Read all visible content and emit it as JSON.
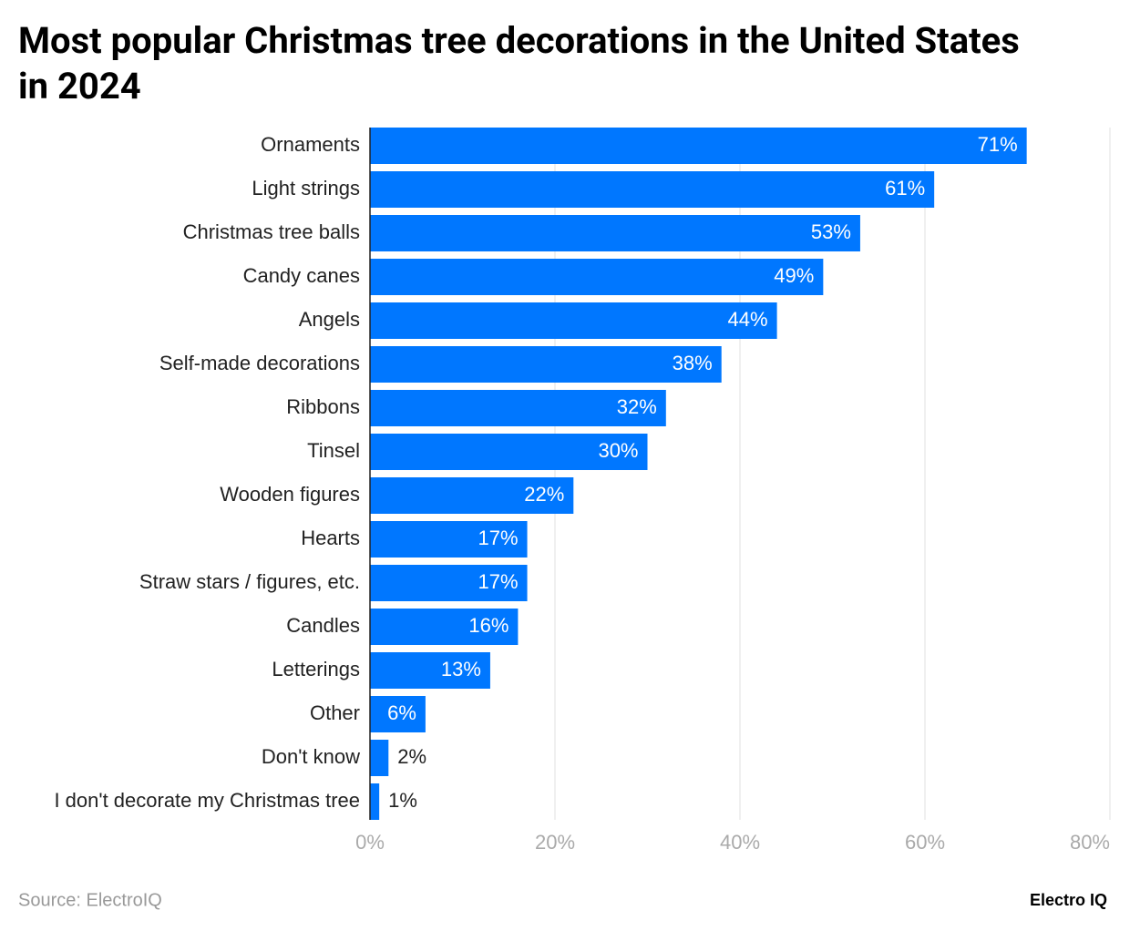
{
  "chart_data": {
    "type": "hbar",
    "title": "Most popular Christmas tree decorations in the United States in 2024",
    "categories": [
      "Ornaments",
      "Light strings",
      "Christmas tree balls",
      "Candy canes",
      "Angels",
      "Self-made decorations",
      "Ribbons",
      "Tinsel",
      "Wooden figures",
      "Hearts",
      "Straw stars / figures, etc.",
      "Candles",
      "Letterings",
      "Other",
      "Don't know",
      "I don't decorate my Christmas tree"
    ],
    "values": [
      71,
      61,
      53,
      49,
      44,
      38,
      32,
      30,
      22,
      17,
      17,
      16,
      13,
      6,
      2,
      1
    ],
    "value_labels": [
      "71%",
      "61%",
      "53%",
      "49%",
      "44%",
      "38%",
      "32%",
      "30%",
      "22%",
      "17%",
      "17%",
      "16%",
      "13%",
      "6%",
      "2%",
      "1%"
    ],
    "color": "#0077ff",
    "xlim": [
      0,
      80
    ],
    "xticks": [
      {
        "value": 0,
        "label": "0%"
      },
      {
        "value": 20,
        "label": "20%"
      },
      {
        "value": 40,
        "label": "40%"
      },
      {
        "value": 60,
        "label": "60%"
      },
      {
        "value": 80,
        "label": "80%"
      }
    ],
    "grid": true,
    "source": "Source: ElectroIQ",
    "brand": "Electro IQ"
  }
}
